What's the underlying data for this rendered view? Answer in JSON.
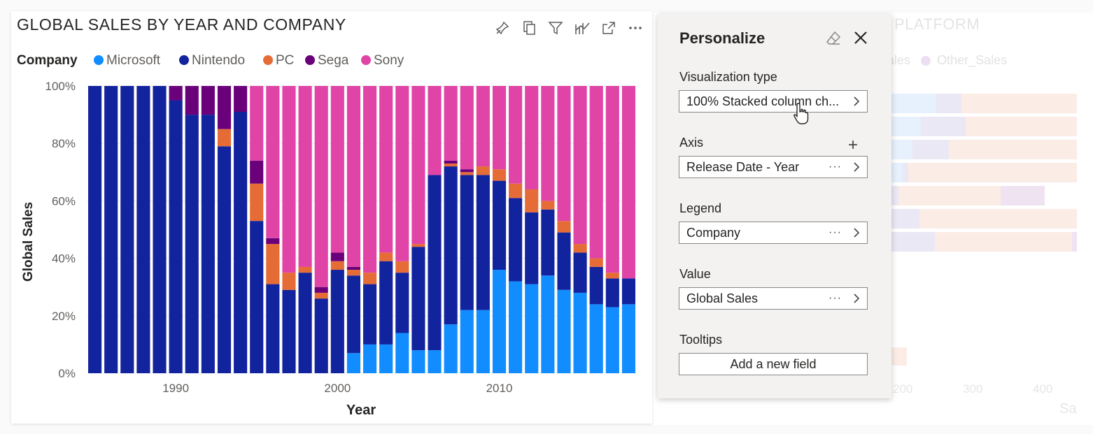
{
  "chart": {
    "title": "GLOBAL SALES BY YEAR AND COMPANY",
    "legend_title": "Company",
    "header_icons": [
      "pin-icon",
      "copy-icon",
      "filter-icon",
      "focus-mode-icon",
      "expand-icon",
      "more-options-icon"
    ]
  },
  "chart_data": {
    "type": "bar",
    "stacked": "100%",
    "title": "GLOBAL SALES BY YEAR AND COMPANY",
    "xlabel": "Year",
    "ylabel": "Global Sales",
    "ylim": [
      0,
      100
    ],
    "y_ticks": [
      "0%",
      "20%",
      "40%",
      "60%",
      "80%",
      "100%"
    ],
    "x_ticks": [
      "1990",
      "2000",
      "2010"
    ],
    "legend_position": "top-left",
    "categories": [
      1985,
      1986,
      1987,
      1988,
      1989,
      1990,
      1991,
      1992,
      1993,
      1994,
      1995,
      1996,
      1997,
      1998,
      1999,
      2000,
      2001,
      2002,
      2003,
      2004,
      2005,
      2006,
      2007,
      2008,
      2009,
      2010,
      2011,
      2012,
      2013,
      2014,
      2015,
      2016,
      2017,
      2018
    ],
    "series": [
      {
        "name": "Microsoft",
        "color": "#118dff",
        "values": [
          0,
          0,
          0,
          0,
          0,
          0,
          0,
          0,
          0,
          0,
          0,
          0,
          0,
          0,
          0,
          0,
          7,
          10,
          10,
          14,
          8,
          8,
          17,
          22,
          22,
          36,
          32,
          31,
          34,
          29,
          28,
          24,
          23,
          24
        ]
      },
      {
        "name": "Nintendo",
        "color": "#12239e",
        "values": [
          100,
          100,
          100,
          100,
          100,
          95,
          90,
          90,
          79,
          91,
          53,
          31,
          29,
          35,
          26,
          36,
          27,
          21,
          29,
          21,
          36,
          61,
          55,
          47,
          47,
          31,
          29,
          25,
          23,
          20,
          14,
          13,
          10,
          9
        ]
      },
      {
        "name": "PC",
        "color": "#e66c37",
        "values": [
          0,
          0,
          0,
          0,
          0,
          0,
          0,
          0,
          6,
          0,
          13,
          14,
          6,
          2,
          2,
          3,
          2,
          4,
          3,
          4,
          1,
          0,
          1,
          1,
          3,
          4,
          5,
          8,
          3,
          4,
          3,
          3,
          2,
          0
        ]
      },
      {
        "name": "Sega",
        "color": "#6b007b",
        "values": [
          0,
          0,
          0,
          0,
          0,
          5,
          10,
          10,
          15,
          9,
          8,
          2,
          0,
          0,
          2,
          3,
          1,
          0,
          0,
          0,
          0,
          0,
          1,
          1,
          0,
          0,
          0,
          0,
          0,
          0,
          0,
          0,
          0,
          0
        ]
      },
      {
        "name": "Sony",
        "color": "#e044a7",
        "values": [
          0,
          0,
          0,
          0,
          0,
          0,
          0,
          0,
          0,
          0,
          26,
          53,
          65,
          63,
          70,
          58,
          63,
          65,
          58,
          61,
          55,
          31,
          26,
          29,
          28,
          29,
          34,
          36,
          40,
          47,
          55,
          60,
          65,
          67
        ]
      }
    ]
  },
  "background_visual": {
    "title": "PLATFORM",
    "legend_items": [
      "ales",
      "Other_Sales"
    ],
    "x_ticks": [
      "200",
      "300",
      "400"
    ],
    "axis_label": "Sa"
  },
  "personalize": {
    "title": "Personalize",
    "sections": {
      "visualization_type": {
        "label": "Visualization type",
        "value": "100% Stacked column ch..."
      },
      "axis": {
        "label": "Axis",
        "value": "Release Date - Year",
        "more": "···"
      },
      "legend": {
        "label": "Legend",
        "value": "Company",
        "more": "···"
      },
      "value": {
        "label": "Value",
        "value": "Global Sales",
        "more": "···"
      },
      "tooltips": {
        "label": "Tooltips",
        "button": "Add a new field"
      }
    },
    "add_symbol": "+"
  }
}
